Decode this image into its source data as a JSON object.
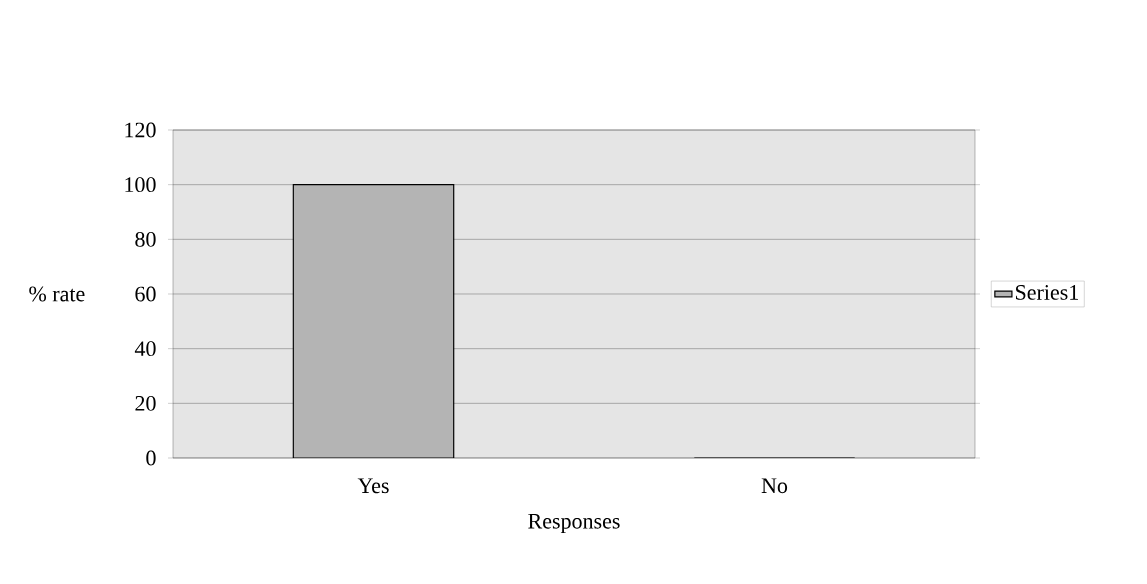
{
  "chart_data": {
    "type": "bar",
    "xlabel": "Responses",
    "ylabel": "% rate",
    "categories": [
      "Yes",
      "No"
    ],
    "series": [
      {
        "name": "Series1",
        "color": "#b4b4b4",
        "values": [
          100,
          0
        ]
      }
    ],
    "ylim": [
      0,
      120
    ],
    "yticks": [
      0,
      20,
      40,
      60,
      80,
      100,
      120
    ],
    "grid": "y",
    "legend": "right"
  }
}
